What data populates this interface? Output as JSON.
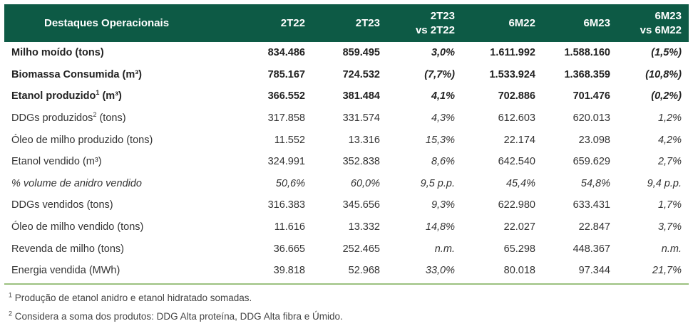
{
  "table": {
    "headers": {
      "label": "Destaques Operacionais",
      "c1": "2T22",
      "c2": "2T23",
      "c3_line1": "2T23",
      "c3_line2": "vs 2T22",
      "c4": "6M22",
      "c5": "6M23",
      "c6_line1": "6M23",
      "c6_line2": "vs 6M22"
    },
    "rows": [
      {
        "label": "Milho moído (tons)",
        "sup": "",
        "unit": "",
        "v1": "834.486",
        "v2": "859.495",
        "v3": "3,0%",
        "v4": "1.611.992",
        "v5": "1.588.160",
        "v6": "(1,5%)"
      },
      {
        "label": "Biomassa Consumida (m³)",
        "sup": "",
        "unit": "",
        "v1": "785.167",
        "v2": "724.532",
        "v3": "(7,7%)",
        "v4": "1.533.924",
        "v5": "1.368.359",
        "v6": "(10,8%)"
      },
      {
        "label": "Etanol produzido",
        "sup": "1",
        "unit": " (m³)",
        "v1": "366.552",
        "v2": "381.484",
        "v3": "4,1%",
        "v4": "702.886",
        "v5": "701.476",
        "v6": "(0,2%)"
      },
      {
        "label": "DDGs produzidos",
        "sup": "2",
        "unit": " (tons)",
        "v1": "317.858",
        "v2": "331.574",
        "v3": "4,3%",
        "v4": "612.603",
        "v5": "620.013",
        "v6": "1,2%"
      },
      {
        "label": "Óleo de milho produzido (tons)",
        "sup": "",
        "unit": "",
        "v1": "11.552",
        "v2": "13.316",
        "v3": "15,3%",
        "v4": "22.174",
        "v5": "23.098",
        "v6": "4,2%"
      },
      {
        "label": "Etanol vendido (m³)",
        "sup": "",
        "unit": "",
        "v1": "324.991",
        "v2": "352.838",
        "v3": "8,6%",
        "v4": "642.540",
        "v5": "659.629",
        "v6": "2,7%"
      },
      {
        "label": "% volume de anidro vendido",
        "sup": "",
        "unit": "",
        "v1": "50,6%",
        "v2": "60,0%",
        "v3": "9,5 p.p.",
        "v4": "45,4%",
        "v5": "54,8%",
        "v6": "9,4 p.p."
      },
      {
        "label": "DDGs vendidos (tons)",
        "sup": "",
        "unit": "",
        "v1": "316.383",
        "v2": "345.656",
        "v3": "9,3%",
        "v4": "622.980",
        "v5": "633.431",
        "v6": "1,7%"
      },
      {
        "label": "Óleo de milho vendido (tons)",
        "sup": "",
        "unit": "",
        "v1": "11.616",
        "v2": "13.332",
        "v3": "14,8%",
        "v4": "22.027",
        "v5": "22.847",
        "v6": "3,7%"
      },
      {
        "label": "Revenda de milho (tons)",
        "sup": "",
        "unit": "",
        "v1": "36.665",
        "v2": "252.465",
        "v3": "n.m.",
        "v4": "65.298",
        "v5": "448.367",
        "v6": "n.m."
      },
      {
        "label": "Energia vendida (MWh)",
        "sup": "",
        "unit": "",
        "v1": "39.818",
        "v2": "52.968",
        "v3": "33,0%",
        "v4": "80.018",
        "v5": "97.344",
        "v6": "21,7%"
      }
    ]
  },
  "footnotes": {
    "note1_mark": "1",
    "note1_text": " Produção de etanol anidro e etanol hidratado somadas.",
    "note2_mark": "2",
    "note2_text": " Considera a soma dos produtos: DDG Alta proteína, DDG Alta fibra e Úmido."
  },
  "colors": {
    "header_bg": "#0d5a45",
    "header_text": "#ffffff",
    "bottom_rule": "#9bc17f"
  }
}
